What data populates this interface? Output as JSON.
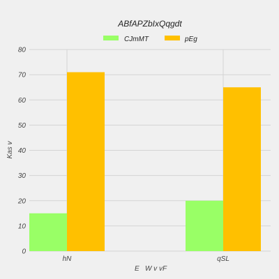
{
  "chart_data": {
    "type": "bar",
    "title": "ABfAPZbIxQqgdt",
    "xlabel": "E   W v vF",
    "ylabel": "Kas v",
    "categories": [
      "hN",
      "qSL"
    ],
    "series": [
      {
        "name": "CJmMT",
        "values": [
          15,
          20
        ],
        "color": "#99ff66"
      },
      {
        "name": "pEg",
        "values": [
          71,
          65
        ],
        "color": "#ffc000"
      }
    ],
    "ylim": [
      0,
      80
    ],
    "yticks": [
      0,
      10,
      20,
      30,
      40,
      50,
      60,
      70,
      80
    ],
    "grid": true,
    "legend_position": "top-center"
  }
}
